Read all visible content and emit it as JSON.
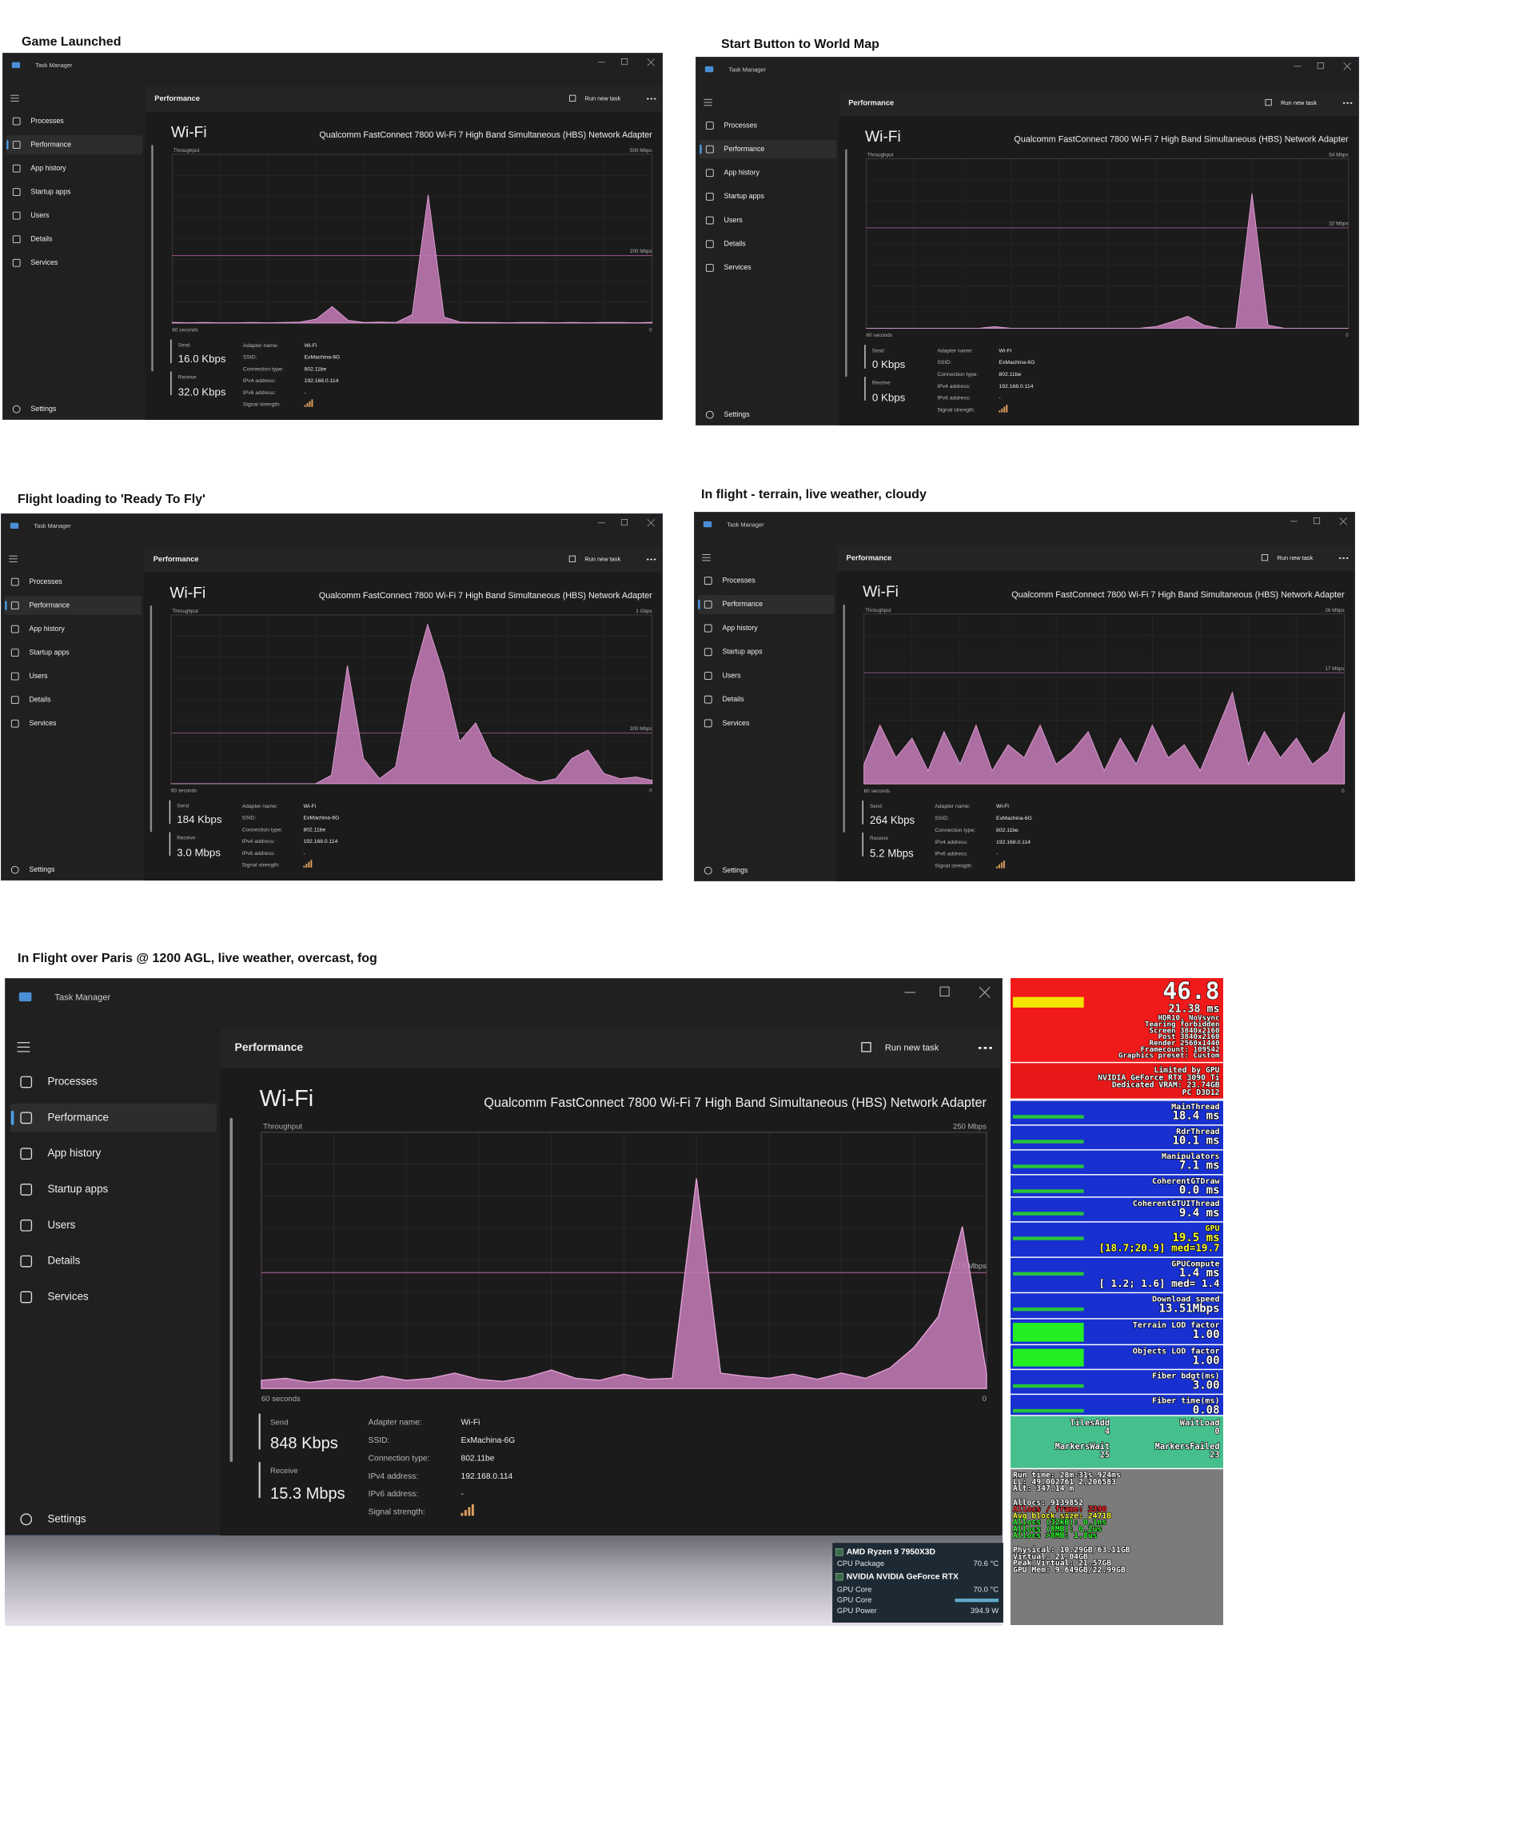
{
  "window": {
    "app_title": "Task Manager",
    "nav": [
      "Processes",
      "Performance",
      "App history",
      "Startup apps",
      "Users",
      "Details",
      "Services"
    ],
    "settings": "Settings",
    "section": "Performance",
    "run_new_task": "Run new task",
    "device": "Wi-Fi",
    "adapter": "Qualcomm FastConnect 7800 Wi-Fi 7 High Band Simultaneous (HBS) Network Adapter",
    "throughput": "Throughput",
    "send_label": "Send",
    "receive_label": "Receive",
    "details": [
      {
        "label": "Adapter name:",
        "value": "Wi-Fi"
      },
      {
        "label": "SSID:",
        "value": "ExMachina-6G"
      },
      {
        "label": "Connection type:",
        "value": "802.11be"
      },
      {
        "label": "IPv4 address:",
        "value": "192.168.0.114"
      },
      {
        "label": "IPv6 address:",
        "value": "-"
      },
      {
        "label": "Signal strength:"
      }
    ]
  },
  "panels": [
    {
      "caption": "Game Launched",
      "send": "16.0 Kbps",
      "receive": "32.0 Kbps",
      "chart": {
        "type": "area",
        "color": "#c27ab5",
        "ylim": [
          0,
          500
        ],
        "yticks": [
          {
            "value": 200,
            "label": "200 Mbps"
          },
          {
            "value": 500,
            "label": "500 Mbps"
          }
        ],
        "xlim": [
          60,
          0
        ],
        "xticks": [
          {
            "value": 60,
            "label": "60 seconds"
          },
          0
        ],
        "values": [
          2,
          1,
          2,
          1,
          1,
          2,
          1,
          2,
          3,
          12,
          49,
          8,
          2,
          3,
          2,
          25,
          380,
          18,
          3,
          2,
          2,
          1,
          2,
          2,
          1,
          2,
          1,
          2,
          2,
          1,
          2
        ]
      }
    },
    {
      "caption": "Start Button to World Map",
      "send": "0 Kbps",
      "receive": "0 Kbps",
      "chart": {
        "type": "area",
        "color": "#c27ab5",
        "ylim": [
          0,
          54
        ],
        "yticks": [
          {
            "value": 32,
            "label": "32 Mbps"
          },
          {
            "value": 54,
            "label": "54 Mbps"
          }
        ],
        "xlim": [
          60,
          0
        ],
        "xticks": [
          {
            "value": 60,
            "label": "60 seconds"
          },
          0
        ],
        "values": [
          0,
          0,
          0,
          0,
          0,
          0,
          0,
          0,
          0.5,
          0,
          0,
          0,
          0,
          0,
          0,
          0,
          0,
          0,
          0.5,
          2,
          3.8,
          1,
          0,
          0,
          43,
          1,
          0,
          0,
          0,
          0,
          0
        ]
      }
    },
    {
      "caption": "Flight loading to 'Ready To Fly'",
      "send": "184 Kbps",
      "receive": "3.0 Mbps",
      "chart": {
        "type": "area",
        "color": "#c27ab5",
        "ylim": [
          0,
          1000
        ],
        "yticks": [
          {
            "value": 300,
            "label": "300 Mbps"
          },
          {
            "value": 1000,
            "label": "1 Gbps"
          }
        ],
        "xlim": [
          60,
          0
        ],
        "xticks": [
          {
            "value": 60,
            "label": "60 seconds"
          },
          0
        ],
        "values": [
          0,
          0,
          0,
          0,
          0,
          0,
          0,
          0,
          0,
          0,
          50,
          700,
          150,
          30,
          100,
          600,
          944,
          650,
          250,
          361,
          160,
          97,
          40,
          10,
          30,
          150,
          200,
          60,
          30,
          40,
          20
        ]
      }
    },
    {
      "caption": "In flight - terrain, live weather, cloudy",
      "send": "264 Kbps",
      "receive": "5.2 Mbps",
      "chart": {
        "type": "area",
        "color": "#c27ab5",
        "ylim": [
          0,
          26
        ],
        "yticks": [
          {
            "value": 17,
            "label": "17 Mbps"
          },
          {
            "value": 26,
            "label": "26 Mbps"
          }
        ],
        "xlim": [
          60,
          0
        ],
        "xticks": [
          {
            "value": 60,
            "label": "60 seconds"
          },
          0
        ],
        "values": [
          3,
          9,
          4,
          7,
          2,
          8,
          3,
          9,
          2,
          6,
          4,
          9,
          3,
          5,
          8,
          2,
          7,
          3,
          9,
          4,
          6,
          2,
          8,
          14,
          3,
          8,
          4,
          7,
          3,
          5,
          11
        ]
      }
    },
    {
      "caption": "In Flight over Paris @ 1200 AGL, live weather, overcast, fog",
      "send": "848 Kbps",
      "receive": "15.3 Mbps",
      "chart": {
        "type": "area",
        "color": "#c27ab5",
        "ylim": [
          0,
          250
        ],
        "yticks": [
          {
            "value": 113,
            "label": "113 Mbps"
          },
          {
            "value": 250,
            "label": "250 Mbps"
          }
        ],
        "xlim": [
          60,
          0
        ],
        "xticks": [
          {
            "value": 60,
            "label": "60 seconds"
          },
          0
        ],
        "values": [
          8,
          10,
          6,
          9,
          7,
          12,
          8,
          10,
          15,
          9,
          7,
          11,
          18,
          10,
          8,
          14,
          9,
          10,
          205,
          15,
          12,
          10,
          14,
          9,
          15,
          10,
          20,
          40,
          70,
          158,
          15
        ]
      }
    }
  ],
  "overlay": {
    "fps": "46.8",
    "frame_time": "21.38 ms",
    "info": [
      "HDR10, NoVsync",
      "Tearing forbidden",
      "Screen 3840x2160",
      "Post 3840x2160",
      "Render 2560x1440",
      "Framecount: 109542",
      "Graphics preset: Custom"
    ],
    "gpu_info": [
      "Limited by GPU",
      "NVIDIA GeForce RTX 3090 Ti",
      "Dedicated VRAM: 23.74GB",
      "PC D3D12"
    ],
    "rows": [
      {
        "label": "MainThread",
        "value": "18.4 ms"
      },
      {
        "label": "RdrThread",
        "value": "10.1 ms"
      },
      {
        "label": "Manipulators",
        "value": "7.1 ms"
      },
      {
        "label": "CoherentGTDraw",
        "value": "0.0 ms"
      },
      {
        "label": "CoherentGTUIThread",
        "value": "9.4 ms"
      },
      {
        "label": "GPU",
        "value": "19.5 ms",
        "range": "[18.7;20.9] med=19.7",
        "color": "#ffff33"
      },
      {
        "label": "GPUCompute",
        "value": "1.4 ms",
        "range": "[ 1.2; 1.6] med= 1.4"
      },
      {
        "label": "Download speed",
        "value": "13.51Mbps"
      },
      {
        "label": "Terrain LOD factor",
        "value": "1.00"
      },
      {
        "label": "Objects LOD factor",
        "value": "1.00"
      },
      {
        "label": "Fiber bdgt(ms)",
        "value": "3.00"
      },
      {
        "label": "Fiber time(ms)",
        "value": "0.08"
      }
    ],
    "tiles": [
      {
        "label": "TilesAdd",
        "value": "4"
      },
      {
        "label": "WaitLoad",
        "value": "0"
      },
      {
        "label": "MarkersWait",
        "value": "25"
      },
      {
        "label": "MarkersFailed",
        "value": "23"
      }
    ],
    "stats": [
      [
        {
          "text": "Run time: 28m:31s.924ms",
          "color": "#ffffff"
        },
        {
          "text": "LL: 49.002761 2.206583",
          "color": "#ffffff"
        },
        {
          "text": "Alt: 347.14 m",
          "color": "#ffffff"
        }
      ],
      [
        {
          "text": "Allocs: 9139852",
          "color": "#ffffff"
        },
        {
          "text": "Allocs / frame: 3390",
          "color": "#ff3030"
        },
        {
          "text": "Avg block size: 2471B",
          "color": "#ffff33"
        },
        {
          "text": "Allocs (32kB): 0.1ns",
          "color": "#33ff33"
        },
        {
          "text": "Allocs (8MB): 0.2us",
          "color": "#33ff33"
        },
        {
          "text": "Allocs >8MB: 1.8us",
          "color": "#33ff33"
        }
      ],
      [
        {
          "text": "Physical: 10.29GB/63.11GB",
          "color": "#ffffff"
        },
        {
          "text": "Virtual: 21.04GB",
          "color": "#ffffff"
        },
        {
          "text": "Peak Virtual: 21.57GB",
          "color": "#ffffff"
        },
        {
          "text": "GPU Mem: 9.649GB/22.99GB",
          "color": "#ffffff"
        }
      ]
    ]
  },
  "hwinfo": [
    {
      "label": "AMD Ryzen 9 7950X3D",
      "header": true
    },
    {
      "label": "CPU Package",
      "value": "70.6 °C"
    },
    {
      "label": "NVIDIA NVIDIA GeForce RTX",
      "header": true
    },
    {
      "label": "GPU Core",
      "value": "70.0 °C"
    },
    {
      "label": "GPU Core",
      "bar": true
    },
    {
      "label": "GPU Power",
      "value": "394.9 W"
    }
  ]
}
